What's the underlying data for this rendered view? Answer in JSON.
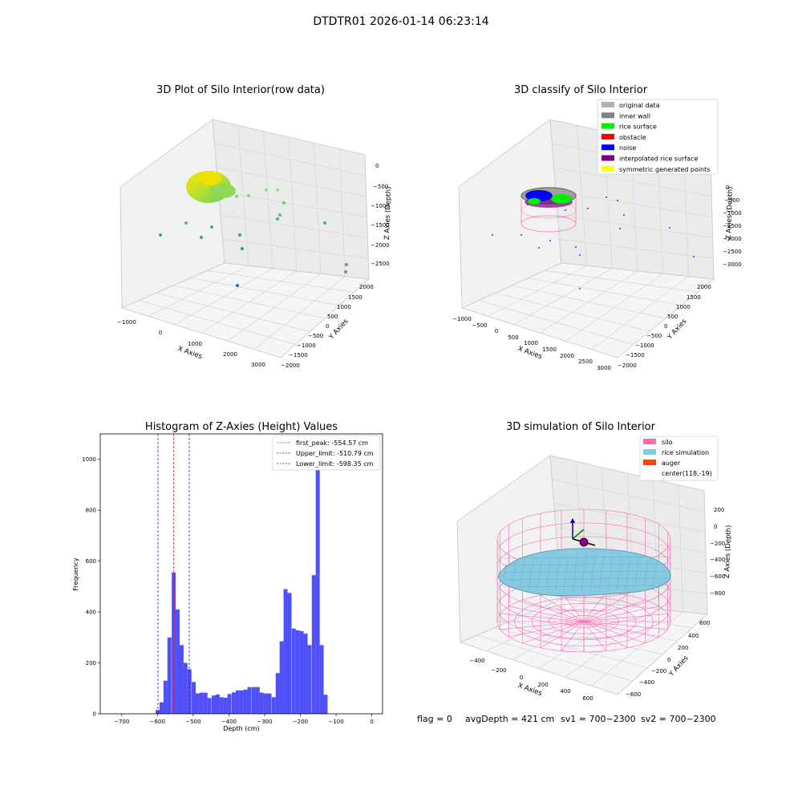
{
  "suptitle": "DTDTR01 2026-01-14 06:23:14",
  "footer": {
    "flag": "flag = 0",
    "avg_depth": "avgDepth = 421 cm",
    "sv1": "sv1 = 700~2300",
    "sv2": "sv2 = 700~2300"
  },
  "colors": {
    "histogram_bar": "#5050f8",
    "first_peak": "#e02020",
    "limits": "#2020c0",
    "silo": "#ff69b4",
    "rice_simulation": "#87c9e0",
    "auger": "#ff4500",
    "original_data": "#b0b0b0",
    "inner_wall": "#808080",
    "rice_surface": "#00ee00",
    "obstacle": "#ff0000",
    "noise": "#0000ff",
    "interpolated": "#800080",
    "symmetric": "#ffff00"
  },
  "chart_data": [
    {
      "type": "scatter",
      "panel": "top-left",
      "title": "3D Plot of Silo Interior(row data)",
      "xlabel": "X Axies",
      "ylabel": "Y Axies",
      "zlabel": "Z Axies (Depth)",
      "x_ticks": [
        "−1000",
        "0",
        "1000",
        "2000",
        "3000"
      ],
      "y_ticks": [
        "2000",
        "1500",
        "1000",
        "500",
        "0",
        "−500",
        "−1000",
        "−1500",
        "−2000"
      ],
      "z_ticks": [
        "0",
        "−500",
        "−1000",
        "−1500",
        "−2000",
        "−2500"
      ],
      "grid": true
    },
    {
      "type": "scatter",
      "panel": "top-right",
      "title": "3D classify of Silo Interior",
      "xlabel": "X Axies",
      "ylabel": "Y Axies",
      "zlabel": "Z Axies (Depth)",
      "x_ticks": [
        "−1000",
        "−500",
        "0",
        "500",
        "1000",
        "1500",
        "2000",
        "2500",
        "3000"
      ],
      "y_ticks": [
        "2000",
        "1500",
        "1000",
        "500",
        "0",
        "−500",
        "−1000",
        "−1500",
        "−2000"
      ],
      "z_ticks": [
        "0",
        "−500",
        "−1000",
        "−1500",
        "−2000",
        "−2500",
        "−3000"
      ],
      "legend": [
        "original data",
        "inner wall",
        "rice surface",
        "obstacle",
        "noise",
        "interpolated rice surface",
        "symmetric generated points"
      ],
      "legend_position": "top-right",
      "grid": true
    },
    {
      "type": "bar",
      "panel": "bottom-left",
      "title": "Histogram of Z-Axies (Height) Values",
      "xlabel": "Depth (cm)",
      "ylabel": "Frequency",
      "xlim": [
        -760,
        30
      ],
      "ylim": [
        0,
        1100
      ],
      "x_ticks": [
        -700,
        -600,
        -500,
        -400,
        -300,
        -200,
        -100,
        0
      ],
      "y_ticks": [
        0,
        200,
        400,
        600,
        800,
        1000
      ],
      "bin_width": 11.2,
      "bins": [
        [
          -605,
          15
        ],
        [
          -594,
          45
        ],
        [
          -583,
          130
        ],
        [
          -572,
          300
        ],
        [
          -560,
          555
        ],
        [
          -549,
          410
        ],
        [
          -538,
          270
        ],
        [
          -527,
          200
        ],
        [
          -516,
          175
        ],
        [
          -504,
          125
        ],
        [
          -493,
          80
        ],
        [
          -482,
          83
        ],
        [
          -471,
          83
        ],
        [
          -460,
          62
        ],
        [
          -448,
          72
        ],
        [
          -437,
          76
        ],
        [
          -426,
          65
        ],
        [
          -415,
          63
        ],
        [
          -404,
          78
        ],
        [
          -392,
          84
        ],
        [
          -381,
          92
        ],
        [
          -370,
          92
        ],
        [
          -359,
          95
        ],
        [
          -348,
          105
        ],
        [
          -336,
          105
        ],
        [
          -325,
          105
        ],
        [
          -314,
          83
        ],
        [
          -303,
          80
        ],
        [
          -292,
          80
        ],
        [
          -280,
          65
        ],
        [
          -269,
          160
        ],
        [
          -258,
          285
        ],
        [
          -247,
          490
        ],
        [
          -236,
          475
        ],
        [
          -224,
          335
        ],
        [
          -213,
          328
        ],
        [
          -202,
          325
        ],
        [
          -191,
          315
        ],
        [
          -180,
          270
        ],
        [
          -168,
          545
        ],
        [
          -157,
          1040
        ],
        [
          -146,
          270
        ],
        [
          -135,
          75
        ]
      ],
      "lines": [
        {
          "label": "first_peak: -554.57 cm",
          "x": -554.57,
          "style": "dashed",
          "color": "red"
        },
        {
          "label": "Upper_limit: -510.79 cm",
          "x": -510.79,
          "style": "dashed",
          "color": "blue"
        },
        {
          "label": "Lower_limit: -598.35 cm",
          "x": -598.35,
          "style": "dashed",
          "color": "blue"
        }
      ],
      "legend_position": "top-right"
    },
    {
      "type": "area",
      "panel": "bottom-right",
      "title": "3D simulation of Silo Interior",
      "xlabel": "X Axies",
      "ylabel": "Y Axies",
      "zlabel": "Z Axies (Depth)",
      "x_ticks": [
        "−400",
        "−200",
        "0",
        "200",
        "400",
        "600"
      ],
      "y_ticks": [
        "600",
        "400",
        "200",
        "0",
        "−200",
        "−400",
        "−600"
      ],
      "z_ticks": [
        "200",
        "0",
        "−200",
        "−400",
        "−600",
        "−800"
      ],
      "legend": [
        "silo",
        "rice simulation",
        "auger",
        "center(118,-19)"
      ],
      "legend_position": "top-right",
      "grid": true
    }
  ]
}
